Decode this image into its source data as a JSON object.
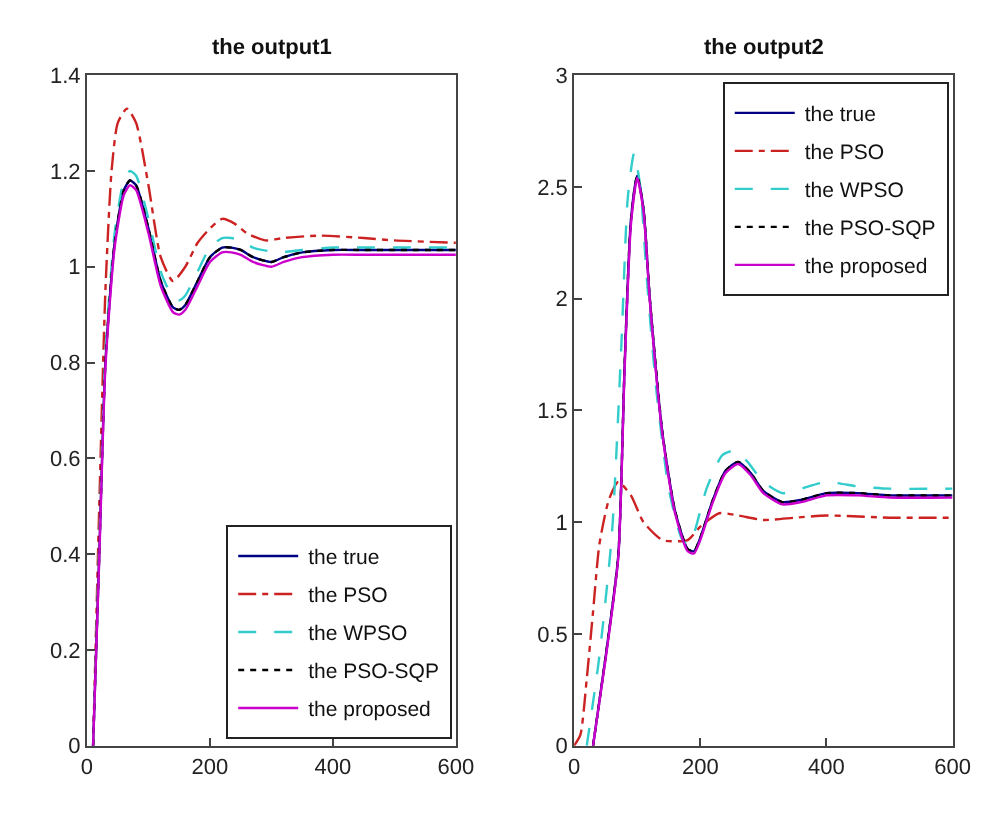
{
  "chart_data": [
    {
      "type": "line",
      "title": "the output1",
      "xlim": [
        0,
        600
      ],
      "ylim": [
        0,
        1.4
      ],
      "xticks": [
        0,
        200,
        400,
        600
      ],
      "yticks": [
        0,
        0.2,
        0.4,
        0.6,
        0.8,
        1,
        1.2,
        1.4
      ],
      "legend": "bottom right",
      "marker": "none",
      "series": [
        {
          "name": "the true",
          "color": "#000080",
          "line_style": "solid",
          "x": [
            10,
            20,
            30,
            45,
            60,
            70,
            80,
            100,
            120,
            140,
            150,
            160,
            180,
            200,
            220,
            235,
            250,
            270,
            300,
            320,
            350,
            400,
            450,
            500,
            600
          ],
          "values": [
            0,
            0.4,
            0.8,
            1.05,
            1.16,
            1.18,
            1.17,
            1.08,
            0.97,
            0.915,
            0.91,
            0.92,
            0.97,
            1.02,
            1.04,
            1.04,
            1.035,
            1.02,
            1.01,
            1.02,
            1.03,
            1.035,
            1.035,
            1.035,
            1.035
          ]
        },
        {
          "name": "the PSO",
          "color": "#cc2222",
          "line_style": "dashdot",
          "x": [
            10,
            20,
            30,
            40,
            50,
            65,
            80,
            100,
            120,
            140,
            160,
            180,
            200,
            220,
            240,
            260,
            290,
            320,
            380,
            450,
            500,
            600
          ],
          "values": [
            0,
            0.5,
            0.95,
            1.2,
            1.3,
            1.33,
            1.3,
            1.17,
            1.02,
            0.97,
            1.0,
            1.05,
            1.08,
            1.1,
            1.09,
            1.07,
            1.055,
            1.06,
            1.065,
            1.06,
            1.055,
            1.05
          ]
        },
        {
          "name": "the WPSO",
          "color": "#33cccc",
          "line_style": "dashed",
          "x": [
            10,
            20,
            30,
            45,
            60,
            70,
            80,
            100,
            120,
            140,
            150,
            160,
            180,
            200,
            220,
            235,
            250,
            270,
            310,
            350,
            400,
            450,
            500,
            600
          ],
          "values": [
            0,
            0.42,
            0.82,
            1.07,
            1.18,
            1.2,
            1.19,
            1.1,
            0.99,
            0.935,
            0.93,
            0.94,
            0.99,
            1.04,
            1.06,
            1.06,
            1.055,
            1.04,
            1.03,
            1.035,
            1.04,
            1.04,
            1.04,
            1.04
          ]
        },
        {
          "name": "the PSO-SQP",
          "color": "#000000",
          "line_style": "dotted",
          "x": [
            10,
            20,
            30,
            45,
            60,
            70,
            80,
            100,
            120,
            140,
            150,
            160,
            180,
            200,
            220,
            235,
            250,
            270,
            300,
            320,
            350,
            400,
            450,
            500,
            600
          ],
          "values": [
            0,
            0.4,
            0.8,
            1.05,
            1.16,
            1.18,
            1.17,
            1.08,
            0.97,
            0.915,
            0.91,
            0.92,
            0.97,
            1.02,
            1.04,
            1.04,
            1.035,
            1.02,
            1.01,
            1.02,
            1.03,
            1.035,
            1.035,
            1.035,
            1.035
          ]
        },
        {
          "name": "the proposed",
          "color": "#cc00cc",
          "line_style": "solid",
          "x": [
            10,
            20,
            30,
            45,
            60,
            70,
            80,
            100,
            120,
            140,
            150,
            160,
            180,
            200,
            220,
            235,
            250,
            270,
            300,
            320,
            350,
            400,
            450,
            500,
            600
          ],
          "values": [
            0,
            0.39,
            0.79,
            1.04,
            1.15,
            1.17,
            1.16,
            1.07,
            0.96,
            0.905,
            0.9,
            0.91,
            0.96,
            1.01,
            1.03,
            1.03,
            1.025,
            1.01,
            1.0,
            1.01,
            1.02,
            1.025,
            1.025,
            1.025,
            1.025
          ]
        }
      ]
    },
    {
      "type": "line",
      "title": "the output2",
      "xlim": [
        0,
        600
      ],
      "ylim": [
        0,
        3
      ],
      "xticks": [
        0,
        200,
        400,
        600
      ],
      "yticks": [
        0,
        0.5,
        1,
        1.5,
        2,
        2.5,
        3
      ],
      "legend": "top right",
      "marker": "none",
      "series": [
        {
          "name": "the true",
          "color": "#000080",
          "line_style": "solid",
          "x": [
            30,
            50,
            70,
            80,
            90,
            100,
            110,
            120,
            140,
            160,
            180,
            190,
            200,
            220,
            240,
            260,
            280,
            300,
            330,
            360,
            400,
            450,
            500,
            600
          ],
          "values": [
            0,
            0.4,
            0.85,
            1.7,
            2.35,
            2.55,
            2.4,
            2.0,
            1.4,
            1.05,
            0.88,
            0.87,
            0.93,
            1.1,
            1.23,
            1.27,
            1.22,
            1.14,
            1.09,
            1.1,
            1.13,
            1.13,
            1.12,
            1.12
          ]
        },
        {
          "name": "the PSO",
          "color": "#cc2222",
          "line_style": "dashdot",
          "x": [
            0,
            10,
            20,
            30,
            40,
            55,
            70,
            90,
            110,
            140,
            180,
            200,
            230,
            260,
            300,
            350,
            400,
            500,
            600
          ],
          "values": [
            0,
            0.05,
            0.3,
            0.6,
            0.9,
            1.1,
            1.18,
            1.12,
            1.0,
            0.92,
            0.92,
            0.98,
            1.04,
            1.03,
            1.01,
            1.02,
            1.03,
            1.02,
            1.02
          ]
        },
        {
          "name": "the WPSO",
          "color": "#33cccc",
          "line_style": "dashed",
          "x": [
            20,
            40,
            60,
            75,
            85,
            95,
            105,
            115,
            130,
            150,
            170,
            180,
            190,
            210,
            235,
            255,
            275,
            300,
            330,
            360,
            400,
            450,
            500,
            600
          ],
          "values": [
            0,
            0.4,
            0.95,
            1.8,
            2.45,
            2.65,
            2.5,
            2.1,
            1.6,
            1.15,
            0.93,
            0.9,
            0.95,
            1.15,
            1.3,
            1.32,
            1.27,
            1.18,
            1.13,
            1.15,
            1.18,
            1.16,
            1.15,
            1.15
          ]
        },
        {
          "name": "the PSO-SQP",
          "color": "#000000",
          "line_style": "dotted",
          "x": [
            30,
            50,
            70,
            80,
            90,
            100,
            110,
            120,
            140,
            160,
            180,
            190,
            200,
            220,
            240,
            260,
            280,
            300,
            330,
            360,
            400,
            450,
            500,
            600
          ],
          "values": [
            0,
            0.4,
            0.85,
            1.7,
            2.35,
            2.55,
            2.4,
            2.0,
            1.4,
            1.05,
            0.88,
            0.87,
            0.93,
            1.1,
            1.23,
            1.27,
            1.22,
            1.14,
            1.09,
            1.1,
            1.13,
            1.13,
            1.12,
            1.12
          ]
        },
        {
          "name": "the proposed",
          "color": "#cc00cc",
          "line_style": "solid",
          "x": [
            30,
            50,
            70,
            80,
            90,
            100,
            110,
            120,
            140,
            160,
            180,
            190,
            200,
            220,
            240,
            260,
            280,
            300,
            330,
            360,
            400,
            450,
            500,
            600
          ],
          "values": [
            0,
            0.39,
            0.84,
            1.68,
            2.33,
            2.54,
            2.39,
            1.99,
            1.39,
            1.04,
            0.87,
            0.86,
            0.92,
            1.09,
            1.22,
            1.26,
            1.21,
            1.13,
            1.08,
            1.09,
            1.12,
            1.12,
            1.11,
            1.11
          ]
        }
      ]
    }
  ]
}
